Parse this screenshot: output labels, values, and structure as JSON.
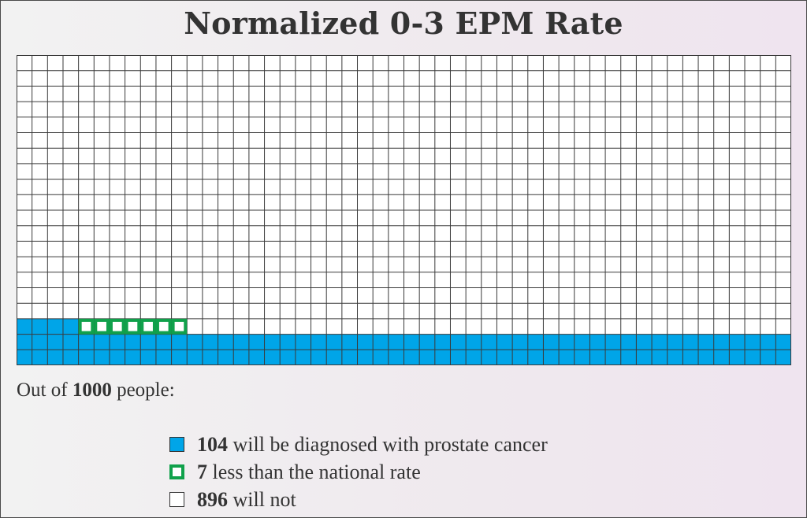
{
  "chart_data": {
    "type": "waffle",
    "title": "Normalized 0-3 EPM Rate",
    "total": 1000,
    "columns": 50,
    "rows": 20,
    "fill_order": "bottom-up, row by row, left to right",
    "counts": {
      "diagnosed": 104,
      "less_than_national": 7,
      "not_diagnosed": 896
    },
    "caption": {
      "prefix": "Out of",
      "number": "1000",
      "suffix": "people:"
    },
    "legend": [
      {
        "key": "diagnosed",
        "number": "104",
        "text": "will be diagnosed with prostate cancer",
        "style": "filled",
        "color": "#00a5e8"
      },
      {
        "key": "less_than_national",
        "number": "7",
        "text": "less than the national rate",
        "style": "outline",
        "color": "#10a14b"
      },
      {
        "key": "not_diagnosed",
        "number": "896",
        "text": "will not",
        "style": "empty",
        "color": "#ffffff"
      }
    ],
    "colors": {
      "diagnosed": "#00a5e8",
      "less_than_national": "#10a14b",
      "empty": "#ffffff",
      "gridline": "#3a3a3a"
    }
  }
}
